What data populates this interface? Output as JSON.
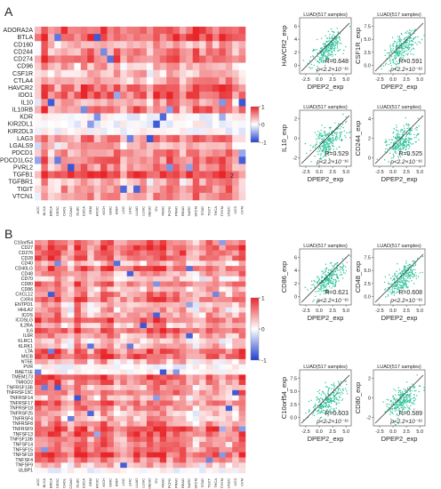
{
  "panels": [
    {
      "letter": "A",
      "heatmap": {
        "genes": [
          "ADORA2A",
          "BTLA",
          "CD160",
          "CD244",
          "CD274",
          "CD96",
          "CSF1R",
          "CTLA4",
          "HAVCR2",
          "IDO1",
          "IL10",
          "IL10RB",
          "KDR",
          "KIR2DL1",
          "KIR2DL3",
          "LAG3",
          "LGALS9",
          "PDCD1",
          "PDCD1LG2",
          "PVRL2",
          "TGFB1",
          "TGFBR1",
          "TIGIT",
          "VTCN1"
        ],
        "cancers": [
          "ACC",
          "BLCA",
          "BRCA",
          "CESC",
          "CHOL",
          "COAD",
          "DLBC",
          "ESCA",
          "GBM",
          "HNSC",
          "KICH",
          "KIRC",
          "KIRP",
          "LGG",
          "LIHC",
          "LUAD",
          "LUSC",
          "MESO",
          "OV",
          "PAAD",
          "PCPG",
          "PRAD",
          "READ",
          "SARC",
          "SKCM",
          "STAD",
          "TGCT",
          "THCA",
          "THYM",
          "UCEC",
          "UCS",
          "UVM"
        ]
      },
      "colorbar": {
        "ticks": [
          "1",
          "0",
          "-1"
        ]
      },
      "annotation": "2",
      "scatters": [
        {
          "title": "LUAD(517 samples)",
          "xlabel": "DPEP2_exp",
          "ylabel": "HAVCR2_exp",
          "r_text": "R=0.648",
          "p_text": "p<2.2×10⁻¹⁶",
          "xticks": [
            "-2.5",
            "0.0",
            "2.5",
            "5.0"
          ],
          "yticks": [
            "6",
            "4",
            "2",
            "0"
          ],
          "r": 0.648
        },
        {
          "title": "LUAD(517 samples)",
          "xlabel": "DPEP2_exp",
          "ylabel": "CSF1R_exp",
          "r_text": "R=0.591",
          "p_text": "p<2.2×10⁻¹⁶",
          "xticks": [
            "-2.5",
            "0.0",
            "2.5",
            "5.0"
          ],
          "yticks": [
            "7.5",
            "5.0",
            "2.5",
            "0.0"
          ],
          "r": 0.591
        },
        {
          "title": "LUAD(517 samples)",
          "xlabel": "DPEP2_exp",
          "ylabel": "IL10_exp",
          "r_text": "R=0.529",
          "p_text": "p<2.2×10⁻¹⁶",
          "xticks": [
            "-2.5",
            "0.0",
            "2.5",
            "5.0"
          ],
          "yticks": [
            "2",
            "0",
            "-2"
          ],
          "r": 0.529
        },
        {
          "title": "LUAD(517 samples)",
          "xlabel": "DPEP2_exp",
          "ylabel": "CD244_exp",
          "r_text": "R=0.525",
          "p_text": "p<2.2×10⁻¹⁶",
          "xticks": [
            "-2.5",
            "0.0",
            "2.5",
            "5.0"
          ],
          "yticks": [
            "4",
            "2",
            "0"
          ],
          "r": 0.525
        }
      ]
    },
    {
      "letter": "B",
      "heatmap": {
        "genes": [
          "C10orf54",
          "CD27",
          "CD276",
          "CD28",
          "CD40",
          "CD40LG",
          "CD48",
          "CD70",
          "CD80",
          "CD86",
          "CXCL12",
          "CXR4",
          "ENTPD1",
          "HHLA2",
          "ICOS",
          "ICOSLG",
          "IL2RA",
          "IL6",
          "IL6R",
          "KLRC1",
          "KLRK1",
          "LTA",
          "MICB",
          "NT5E",
          "PVR",
          "RAET1E",
          "TMEM173",
          "TMIGD2",
          "TNFRSF13B",
          "TNFRSF13C",
          "TNFRSF14",
          "TNFRSF17",
          "TNFRSF18",
          "TNFRSF25",
          "TNFRSF4",
          "TNFRSF8",
          "TNFRSF9",
          "TNFSF13",
          "TNFSF13B",
          "TNFSF14",
          "TNFSF15",
          "TNFSF18",
          "TNFSF4",
          "TNFSF9",
          "ULBP1"
        ],
        "cancers": [
          "ACC",
          "BLCA",
          "BRCA",
          "CESC",
          "CHOL",
          "COAD",
          "DLBC",
          "ESCA",
          "GBM",
          "HNSC",
          "KICH",
          "KIRC",
          "KIRP",
          "LGG",
          "LIHC",
          "LUAD",
          "LUSC",
          "MESO",
          "OV",
          "PAAD",
          "PCPG",
          "PRAD",
          "READ",
          "SARC",
          "SKCM",
          "STAD",
          "TGCT",
          "THCA",
          "THYM",
          "UCEC",
          "UCS",
          "UVM"
        ]
      },
      "colorbar": {
        "ticks": [
          "1",
          "0",
          "-1"
        ]
      },
      "scatters": [
        {
          "title": "LUAD(517 samples)",
          "xlabel": "DPEP2_exp",
          "ylabel": "CD86_exp",
          "r_text": "R=0.621",
          "p_text": "p<2.2×10⁻¹⁶",
          "xticks": [
            "-2.5",
            "0.0",
            "2.5",
            "5.0"
          ],
          "yticks": [
            "6",
            "4",
            "2",
            "0"
          ],
          "r": 0.621
        },
        {
          "title": "LUAD(517 samples)",
          "xlabel": "DPEP2_exp",
          "ylabel": "CD48_exp",
          "r_text": "R=0.608",
          "p_text": "p<2.2×10⁻¹⁶",
          "xticks": [
            "-2.5",
            "0.0",
            "2.5",
            "5.0"
          ],
          "yticks": [
            "7.5",
            "5.0",
            "2.5",
            "0.0"
          ],
          "r": 0.608
        },
        {
          "title": "LUAD(517 samples)",
          "xlabel": "DPEP2_exp",
          "ylabel": "C10orf54_exp",
          "r_text": "R=0.603",
          "p_text": "p<2.2×10⁻¹⁶",
          "xticks": [
            "-2.5",
            "0.0",
            "2.5",
            "5.0"
          ],
          "yticks": [
            "7.5",
            "5.0",
            "2.5",
            "0.0"
          ],
          "r": 0.603
        },
        {
          "title": "LUAD(517 samples)",
          "xlabel": "DPEP2_exp",
          "ylabel": "CD80_exp",
          "r_text": "R=0.589",
          "p_text": "p<2.2×10⁻¹⁶",
          "xticks": [
            "-2.5",
            "0.0",
            "2.5",
            "5.0"
          ],
          "yticks": [
            "2",
            "0",
            "-2"
          ],
          "r": 0.589
        }
      ]
    }
  ],
  "colors": {
    "high": "#e8262a",
    "mid": "#ffffff",
    "low": "#1f3fcf",
    "scatter_points": "#2ec39a",
    "fit_line": "#333333"
  },
  "chart_data": [
    {
      "type": "heatmap",
      "panel": "A",
      "y_categories_count": 24,
      "x_categories_count": 32,
      "value_range": [
        -1,
        1
      ],
      "legend": "right"
    },
    {
      "type": "scatter",
      "panel": "A",
      "title": "LUAD(517 samples)",
      "xlabel": "DPEP2_exp",
      "ylabel": "HAVCR2_exp",
      "r": 0.648
    },
    {
      "type": "scatter",
      "panel": "A",
      "title": "LUAD(517 samples)",
      "xlabel": "DPEP2_exp",
      "ylabel": "CSF1R_exp",
      "r": 0.591
    },
    {
      "type": "scatter",
      "panel": "A",
      "title": "LUAD(517 samples)",
      "xlabel": "DPEP2_exp",
      "ylabel": "IL10_exp",
      "r": 0.529
    },
    {
      "type": "scatter",
      "panel": "A",
      "title": "LUAD(517 samples)",
      "xlabel": "DPEP2_exp",
      "ylabel": "CD244_exp",
      "r": 0.525
    },
    {
      "type": "heatmap",
      "panel": "B",
      "y_categories_count": 45,
      "x_categories_count": 32,
      "value_range": [
        -1,
        1
      ],
      "legend": "right"
    },
    {
      "type": "scatter",
      "panel": "B",
      "title": "LUAD(517 samples)",
      "xlabel": "DPEP2_exp",
      "ylabel": "CD86_exp",
      "r": 0.621
    },
    {
      "type": "scatter",
      "panel": "B",
      "title": "LUAD(517 samples)",
      "xlabel": "DPEP2_exp",
      "ylabel": "CD48_exp",
      "r": 0.608
    },
    {
      "type": "scatter",
      "panel": "B",
      "title": "LUAD(517 samples)",
      "xlabel": "DPEP2_exp",
      "ylabel": "C10orf54_exp",
      "r": 0.603
    },
    {
      "type": "scatter",
      "panel": "B",
      "title": "LUAD(517 samples)",
      "xlabel": "DPEP2_exp",
      "ylabel": "CD80_exp",
      "r": 0.589
    }
  ]
}
